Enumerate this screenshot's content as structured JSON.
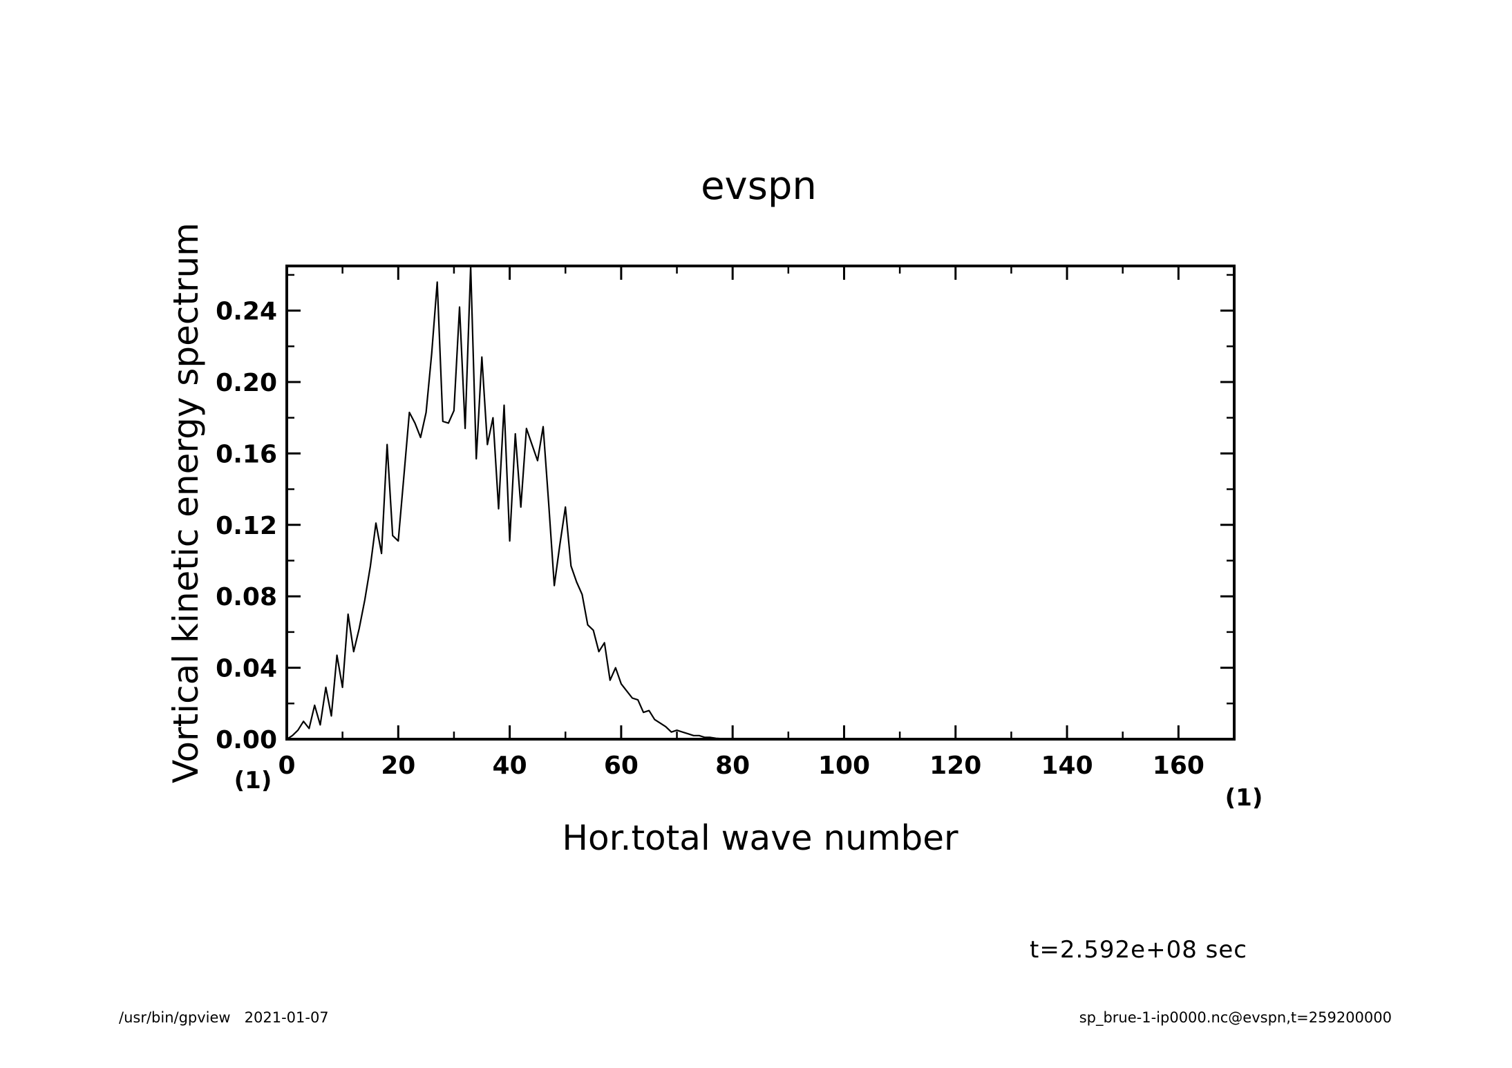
{
  "chart_data": {
    "type": "line",
    "title": "evspn",
    "xlabel": "Hor.total wave number",
    "ylabel": "Vortical kinetic energy spectrum",
    "xlim": [
      0,
      170
    ],
    "ylim": [
      0,
      0.265
    ],
    "x_ticks": [
      0,
      20,
      40,
      60,
      80,
      100,
      120,
      140,
      160
    ],
    "x_tick_labels": [
      "0",
      "20",
      "40",
      "60",
      "80",
      "100",
      "120",
      "140",
      "160"
    ],
    "y_ticks": [
      0,
      0.04,
      0.08,
      0.12,
      0.16,
      0.2,
      0.24
    ],
    "y_tick_labels": [
      "0.00",
      "0.04",
      "0.08",
      "0.12",
      "0.16",
      "0.20",
      "0.24"
    ],
    "x_unit": "(1)",
    "y_unit": "(1)",
    "grid": false,
    "series": [
      {
        "name": "evspn",
        "x": [
          0,
          1,
          2,
          3,
          4,
          5,
          6,
          7,
          8,
          9,
          10,
          11,
          12,
          13,
          14,
          15,
          16,
          17,
          18,
          19,
          20,
          21,
          22,
          23,
          24,
          25,
          26,
          27,
          28,
          29,
          30,
          31,
          32,
          33,
          34,
          35,
          36,
          37,
          38,
          39,
          40,
          41,
          42,
          43,
          44,
          45,
          46,
          47,
          48,
          49,
          50,
          51,
          52,
          53,
          54,
          55,
          56,
          57,
          58,
          59,
          60,
          61,
          62,
          63,
          64,
          65,
          66,
          67,
          68,
          69,
          70,
          71,
          72,
          73,
          74,
          75,
          76,
          77,
          78,
          79,
          80,
          85,
          90,
          100,
          120,
          140,
          160,
          170
        ],
        "values": [
          0.0,
          0.002,
          0.005,
          0.01,
          0.006,
          0.019,
          0.008,
          0.029,
          0.013,
          0.047,
          0.029,
          0.07,
          0.049,
          0.062,
          0.078,
          0.097,
          0.121,
          0.104,
          0.165,
          0.114,
          0.111,
          0.147,
          0.183,
          0.177,
          0.169,
          0.183,
          0.216,
          0.256,
          0.178,
          0.177,
          0.184,
          0.242,
          0.174,
          0.265,
          0.157,
          0.214,
          0.165,
          0.18,
          0.129,
          0.187,
          0.111,
          0.171,
          0.13,
          0.174,
          0.165,
          0.156,
          0.175,
          0.132,
          0.086,
          0.109,
          0.13,
          0.097,
          0.088,
          0.081,
          0.064,
          0.061,
          0.049,
          0.054,
          0.033,
          0.04,
          0.031,
          0.027,
          0.023,
          0.022,
          0.015,
          0.016,
          0.011,
          0.009,
          0.007,
          0.004,
          0.005,
          0.004,
          0.003,
          0.002,
          0.002,
          0.001,
          0.001,
          0.0005,
          0.0003,
          0.0002,
          0.0,
          0.0,
          0.0,
          0.0,
          0.0,
          0.0,
          0.0,
          0.0
        ]
      }
    ]
  },
  "time_label": "t=2.592e+08 sec",
  "footer": {
    "left": "/usr/bin/gpview   2021-01-07",
    "right": "sp_brue-1-ip0000.nc@evspn,t=259200000"
  }
}
